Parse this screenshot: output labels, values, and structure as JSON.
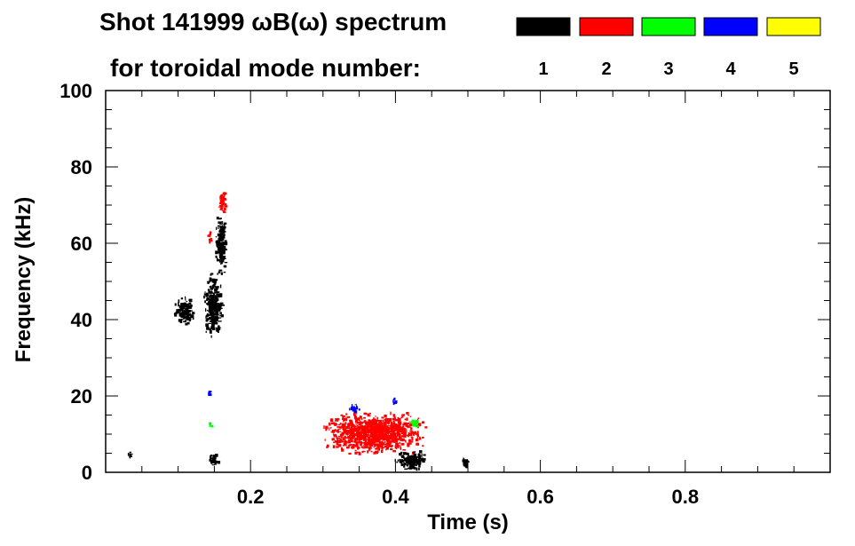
{
  "chart_data": {
    "type": "heatmap",
    "title_line1": "Shot 141999 ωB(ω) spectrum",
    "title_line2": "for toroidal mode number:",
    "xlabel": "Time (s)",
    "ylabel": "Frequency (kHz)",
    "xlim": [
      0.0,
      1.0
    ],
    "ylim": [
      0,
      100
    ],
    "x_ticks": [
      0.2,
      0.4,
      0.6,
      0.8
    ],
    "x_tick_labels": [
      "0.2",
      "0.4",
      "0.6",
      "0.8"
    ],
    "y_ticks": [
      0,
      20,
      40,
      60,
      80,
      100
    ],
    "y_tick_labels": [
      "0",
      "20",
      "40",
      "60",
      "80",
      "100"
    ],
    "grid": false,
    "legend_placement": "top-right",
    "modes": [
      {
        "n": "1",
        "color": "#000000"
      },
      {
        "n": "2",
        "color": "#ff0000"
      },
      {
        "n": "3",
        "color": "#00ff00"
      },
      {
        "n": "4",
        "color": "#0000ff"
      },
      {
        "n": "5",
        "color": "#ffff00"
      }
    ],
    "regions": [
      {
        "mode": "1",
        "t": [
          0.095,
          0.12
        ],
        "f": [
          39,
          46
        ]
      },
      {
        "mode": "1",
        "t": [
          0.135,
          0.16
        ],
        "f": [
          36,
          52
        ]
      },
      {
        "mode": "1",
        "t": [
          0.15,
          0.165
        ],
        "f": [
          52,
          68
        ]
      },
      {
        "mode": "2",
        "t": [
          0.155,
          0.165
        ],
        "f": [
          68,
          74
        ]
      },
      {
        "mode": "2",
        "t": [
          0.14,
          0.145
        ],
        "f": [
          60,
          63
        ]
      },
      {
        "mode": "1",
        "t": [
          0.14,
          0.155
        ],
        "f": [
          2,
          5
        ]
      },
      {
        "mode": "2",
        "t": [
          0.3,
          0.44
        ],
        "f": [
          5,
          16
        ]
      },
      {
        "mode": "1",
        "t": [
          0.4,
          0.44
        ],
        "f": [
          1,
          6
        ]
      },
      {
        "mode": "4",
        "t": [
          0.335,
          0.35
        ],
        "f": [
          16,
          18
        ]
      },
      {
        "mode": "4",
        "t": [
          0.395,
          0.4
        ],
        "f": [
          18,
          20
        ]
      },
      {
        "mode": "3",
        "t": [
          0.42,
          0.43
        ],
        "f": [
          12,
          14
        ]
      },
      {
        "mode": "3",
        "t": [
          0.14,
          0.145
        ],
        "f": [
          12,
          14
        ]
      },
      {
        "mode": "4",
        "t": [
          0.14,
          0.145
        ],
        "f": [
          20,
          22
        ]
      },
      {
        "mode": "1",
        "t": [
          0.03,
          0.035
        ],
        "f": [
          4,
          6
        ]
      },
      {
        "mode": "1",
        "t": [
          0.49,
          0.5
        ],
        "f": [
          1,
          4
        ]
      }
    ]
  }
}
